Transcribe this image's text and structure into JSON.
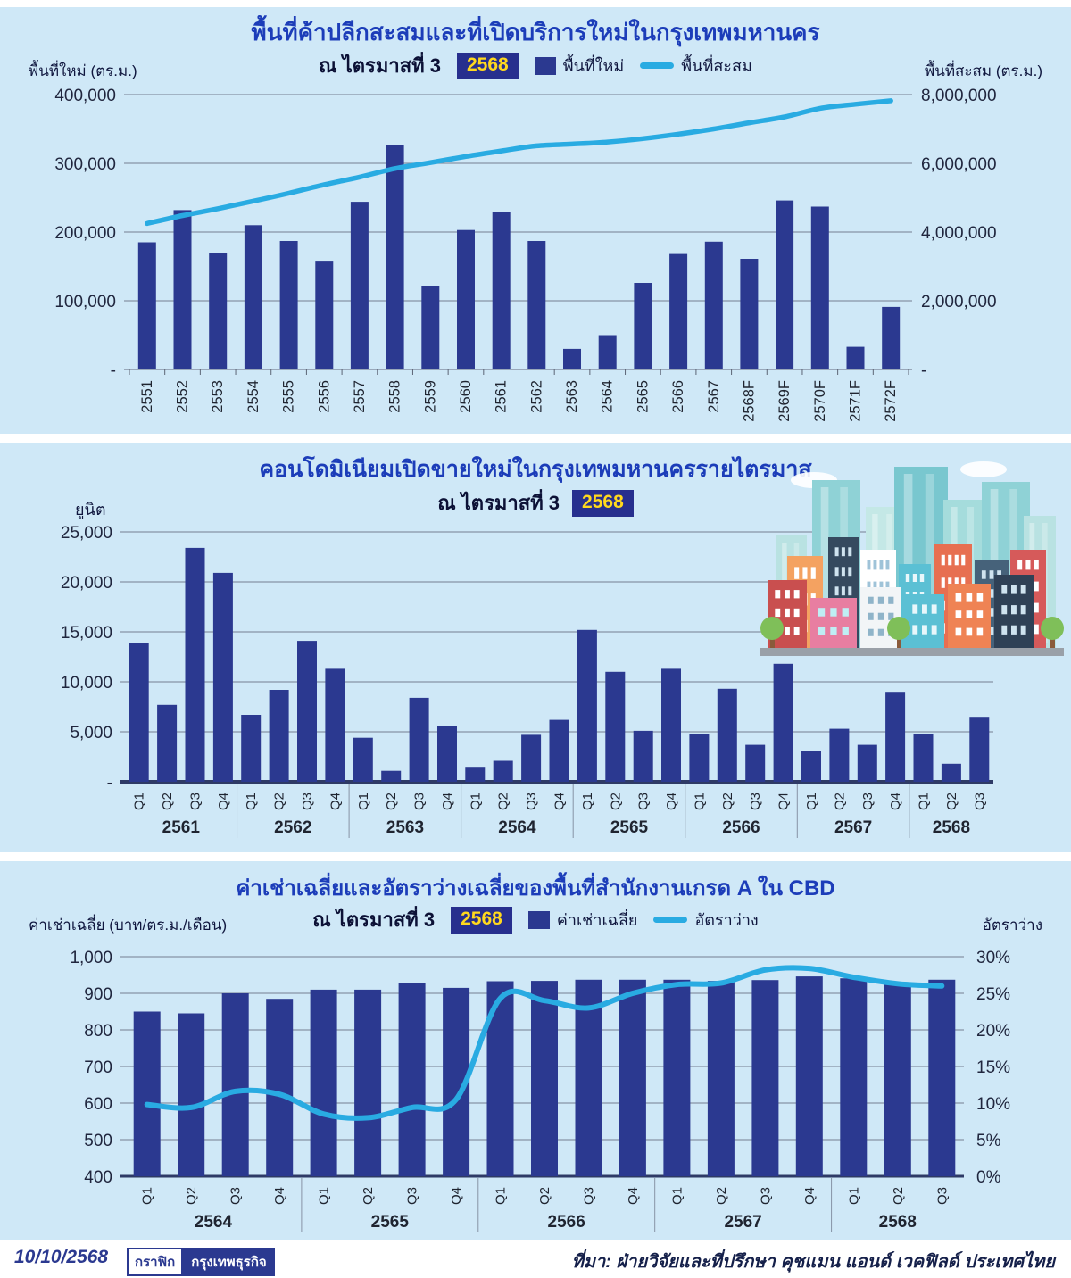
{
  "colors": {
    "panel_bg": "#cfe8f7",
    "bar": "#2b3990",
    "line": "#29abe2",
    "title": "#1c3db9",
    "badge_bg": "#272f8e",
    "badge_text": "#ffd81e",
    "grid": "#8793a5",
    "axis_dark": "#2e3a66"
  },
  "chart_data": [
    {
      "id": "retail-space",
      "type": "bar+line",
      "title": "พื้นที่ค้าปลีกสะสมและที่เปิดบริการใหม่ในกรุงเทพมหานคร",
      "subtitle": "ณ ไตรมาสที่ 3",
      "badge": "2568",
      "left_axis_label": "พื้นที่ใหม่ (ตร.ม.)",
      "right_axis_label": "พื้นที่สะสม (ตร.ม.)",
      "legend": [
        {
          "label": "พื้นที่ใหม่",
          "marker": "bar"
        },
        {
          "label": "พื้นที่สะสม",
          "marker": "line"
        }
      ],
      "categories": [
        "2551",
        "2552",
        "2553",
        "2554",
        "2555",
        "2556",
        "2557",
        "2558",
        "2559",
        "2560",
        "2561",
        "2562",
        "2563",
        "2564",
        "2565",
        "2566",
        "2567",
        "2568F",
        "2569F",
        "2570F",
        "2571F",
        "2572F"
      ],
      "series": [
        {
          "name": "พื้นที่ใหม่",
          "type": "bar",
          "axis": "left",
          "values": [
            185000,
            232000,
            170000,
            210000,
            187000,
            157000,
            244000,
            326000,
            121000,
            203000,
            229000,
            187000,
            30000,
            50000,
            126000,
            168000,
            186000,
            161000,
            246000,
            237000,
            33000,
            91000
          ]
        },
        {
          "name": "พื้นที่สะสม",
          "type": "line",
          "axis": "right",
          "values": [
            4250000,
            4480000,
            4680000,
            4900000,
            5130000,
            5380000,
            5600000,
            5850000,
            6020000,
            6200000,
            6360000,
            6510000,
            6560000,
            6620000,
            6720000,
            6850000,
            7000000,
            7180000,
            7350000,
            7600000,
            7720000,
            7820000
          ]
        }
      ],
      "left_axis": {
        "range": [
          0,
          400000
        ],
        "ticks": [
          "400,000",
          "300,000",
          "200,000",
          "100,000",
          "-"
        ]
      },
      "right_axis": {
        "range": [
          0,
          8000000
        ],
        "ticks": [
          "8,000,000",
          "6,000,000",
          "4,000,000",
          "2,000,000",
          "-"
        ]
      },
      "grid": true,
      "legend_position": "top"
    },
    {
      "id": "condo-launches",
      "type": "bar",
      "title": "คอนโดมิเนียมเปิดขายใหม่ในกรุงเทพมหานครรายไตรมาส",
      "subtitle": "ณ ไตรมาสที่ 3",
      "badge": "2568",
      "ylabel": "ยูนิต",
      "groups": [
        {
          "year": "2561",
          "quarters": [
            "Q1",
            "Q2",
            "Q3",
            "Q4"
          ]
        },
        {
          "year": "2562",
          "quarters": [
            "Q1",
            "Q2",
            "Q3",
            "Q4"
          ]
        },
        {
          "year": "2563",
          "quarters": [
            "Q1",
            "Q2",
            "Q3",
            "Q4"
          ]
        },
        {
          "year": "2564",
          "quarters": [
            "Q1",
            "Q2",
            "Q3",
            "Q4"
          ]
        },
        {
          "year": "2565",
          "quarters": [
            "Q1",
            "Q2",
            "Q3",
            "Q4"
          ]
        },
        {
          "year": "2566",
          "quarters": [
            "Q1",
            "Q2",
            "Q3",
            "Q4"
          ]
        },
        {
          "year": "2567",
          "quarters": [
            "Q1",
            "Q2",
            "Q3",
            "Q4"
          ]
        },
        {
          "year": "2568",
          "quarters": [
            "Q1",
            "Q2",
            "Q3"
          ]
        }
      ],
      "values": [
        13900,
        7700,
        23400,
        20900,
        6700,
        9200,
        14100,
        11300,
        4400,
        1100,
        8400,
        5600,
        1500,
        2100,
        4700,
        6200,
        15200,
        11000,
        5100,
        11300,
        4800,
        9300,
        3700,
        11800,
        3100,
        5300,
        3700,
        9000,
        4800,
        1800,
        6500
      ],
      "left_axis": {
        "range": [
          0,
          25000
        ],
        "ticks": [
          "25,000",
          "20,000",
          "15,000",
          "10,000",
          "5,000",
          "-"
        ]
      },
      "grid": true
    },
    {
      "id": "office-rent-vacancy",
      "type": "bar+line",
      "title": "ค่าเช่าเฉลี่ยและอัตราว่างเฉลี่ยของพื้นที่สำนักงานเกรด A ใน CBD",
      "subtitle": "ณ ไตรมาสที่ 3",
      "badge": "2568",
      "left_axis_label": "ค่าเช่าเฉลี่ย (บาท/ตร.ม./เดือน)",
      "right_axis_label": "อัตราว่าง",
      "legend": [
        {
          "label": "ค่าเช่าเฉลี่ย",
          "marker": "bar"
        },
        {
          "label": "อัตราว่าง",
          "marker": "line"
        }
      ],
      "groups": [
        {
          "year": "2564",
          "quarters": [
            "Q1",
            "Q2",
            "Q3",
            "Q4"
          ]
        },
        {
          "year": "2565",
          "quarters": [
            "Q1",
            "Q2",
            "Q3",
            "Q4"
          ]
        },
        {
          "year": "2566",
          "quarters": [
            "Q1",
            "Q2",
            "Q3",
            "Q4"
          ]
        },
        {
          "year": "2567",
          "quarters": [
            "Q1",
            "Q2",
            "Q3",
            "Q4"
          ]
        },
        {
          "year": "2568",
          "quarters": [
            "Q1",
            "Q2",
            "Q3"
          ]
        }
      ],
      "series": [
        {
          "name": "ค่าเช่าเฉลี่ย",
          "type": "bar",
          "axis": "left",
          "values": [
            850,
            845,
            900,
            885,
            910,
            910,
            928,
            915,
            933,
            934,
            937,
            937,
            937,
            934,
            936,
            946,
            941,
            930,
            937
          ]
        },
        {
          "name": "อัตราว่าง",
          "type": "line",
          "axis": "right",
          "values": [
            9.8,
            9.4,
            11.6,
            11.2,
            8.5,
            8.0,
            9.4,
            10.5,
            24.3,
            24.0,
            23.0,
            25.0,
            26.2,
            26.4,
            28.2,
            28.4,
            27.2,
            26.3,
            26.0
          ]
        }
      ],
      "left_axis": {
        "range": [
          400,
          1000
        ],
        "ticks": [
          "1,000",
          "900",
          "800",
          "700",
          "600",
          "500",
          "400"
        ]
      },
      "right_axis": {
        "range": [
          0,
          30
        ],
        "ticks": [
          "30%",
          "25%",
          "20%",
          "15%",
          "10%",
          "5%",
          "0%"
        ]
      },
      "grid": true,
      "legend_position": "top"
    }
  ],
  "footer": {
    "date": "10/10/2568",
    "badge_outline": "กราฟิก",
    "badge_solid": "กรุงเทพธุรกิจ",
    "source": "ที่มา: ฝ่ายวิจัยและที่ปรึกษา คุชแมน แอนด์ เวคฟิลด์ ประเทศไทย"
  }
}
